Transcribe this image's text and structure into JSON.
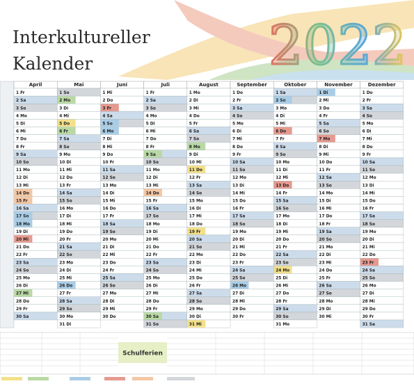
{
  "header": {
    "title_line1": "Interkultureller",
    "title_line2": "Kalender",
    "year": "2022"
  },
  "weekend_colors": {
    "Sa": "#cddceb",
    "So": "#d3d6da"
  },
  "months": [
    {
      "name": "April",
      "days": [
        "1 Fr",
        "2 Sa",
        "3 So",
        "4 Mo",
        "5 Di",
        "6 Mi",
        "7 Do",
        "8 Fr",
        "9 Sa",
        "10 So",
        "11 Mo",
        "12 Di",
        "13 Mi",
        "14 Do",
        "15 Fr",
        "16 Sa",
        "17 So",
        "18 Mo",
        "19 Di",
        "20 Mi",
        "21 Do",
        "22 Fr",
        "23 Sa",
        "24 So",
        "25 Mo",
        "26 Di",
        "27 Mi",
        "28 Do",
        "29 Fr",
        "30 Sa"
      ],
      "highlights": [
        {
          "day": 14,
          "color": "#f4c7a4"
        },
        {
          "day": 15,
          "color": "#f4c7a4"
        },
        {
          "day": 17,
          "color": "#a9cde6"
        },
        {
          "day": 18,
          "color": "#a9cde6"
        },
        {
          "day": 20,
          "color": "#e69a8f"
        },
        {
          "day": 27,
          "color": "#b9d9a4"
        }
      ]
    },
    {
      "name": "Mai",
      "days": [
        "1 So",
        "2 Mo",
        "3 Di",
        "4 Mi",
        "5 Do",
        "6 Fr",
        "7 Sa",
        "8 So",
        "9 Mo",
        "10 Di",
        "11 Mi",
        "12 Do",
        "13 Fr",
        "14 Sa",
        "15 So",
        "16 Mo",
        "17 Di",
        "18 Mi",
        "19 Do",
        "20 Fr",
        "21 Sa",
        "22 So",
        "23 Mo",
        "24 Di",
        "25 Mi",
        "26 Do",
        "27 Fr",
        "28 Sa",
        "29 So",
        "30 Mo",
        "31 Di"
      ],
      "highlights": [
        {
          "day": 2,
          "color": "#b9d9a4"
        },
        {
          "day": 5,
          "color": "#f3e08a"
        },
        {
          "day": 6,
          "color": "#b9d9a4"
        },
        {
          "day": 26,
          "color": "#a9cde6"
        }
      ]
    },
    {
      "name": "Juni",
      "days": [
        "1 Mi",
        "2 Do",
        "3 Fr",
        "4 Sa",
        "5 So",
        "6 Mo",
        "7 Di",
        "8 Mi",
        "9 Do",
        "10 Fr",
        "11 Sa",
        "12 So",
        "13 Mo",
        "14 Di",
        "15 Mi",
        "16 Do",
        "17 Fr",
        "18 Sa",
        "19 So",
        "20 Mo",
        "21 Di",
        "22 Mi",
        "23 Do",
        "24 Fr",
        "25 Sa",
        "26 So",
        "27 Mo",
        "28 Di",
        "29 Mi",
        "30 Do"
      ],
      "highlights": [
        {
          "day": 3,
          "color": "#e69a8f"
        },
        {
          "day": 5,
          "color": "#a9cde6"
        },
        {
          "day": 6,
          "color": "#a9cde6"
        }
      ]
    },
    {
      "name": "Juli",
      "days": [
        "1 Fr",
        "2 Sa",
        "3 So",
        "4 Mo",
        "5 Di",
        "6 Mi",
        "7 Do",
        "8 Fr",
        "9 Sa",
        "10 So",
        "11 Mo",
        "12 Di",
        "13 Mi",
        "14 Do",
        "15 Fr",
        "16 Sa",
        "17 So",
        "18 Mo",
        "19 Di",
        "20 Mi",
        "21 Do",
        "22 Fr",
        "23 Sa",
        "24 So",
        "25 Mo",
        "26 Di",
        "27 Mi",
        "28 Do",
        "29 Fr",
        "30 Sa",
        "31 So"
      ],
      "highlights": [
        {
          "day": 9,
          "color": "#b9d9a4"
        },
        {
          "day": 14,
          "color": "#f4c7a4"
        },
        {
          "day": 30,
          "color": "#b9d9a4"
        }
      ]
    },
    {
      "name": "August",
      "days": [
        "1 Mo",
        "2 Di",
        "3 Mi",
        "4 Do",
        "5 Fr",
        "6 Sa",
        "7 So",
        "8 Mo",
        "9 Di",
        "10 Mi",
        "11 Do",
        "12 Fr",
        "13 Sa",
        "14 So",
        "15 Mo",
        "16 Di",
        "17 Mi",
        "18 Do",
        "19 Fr",
        "20 Sa",
        "21 So",
        "22 Mo",
        "23 Di",
        "24 Mi",
        "25 Do",
        "26 Fr",
        "27 Sa",
        "28 So",
        "29 Mo",
        "30 Di",
        "31 Mi"
      ],
      "highlights": [
        {
          "day": 8,
          "color": "#b9d9a4"
        },
        {
          "day": 11,
          "color": "#f3e08a"
        },
        {
          "day": 19,
          "color": "#f3e08a"
        },
        {
          "day": 31,
          "color": "#f3e08a"
        }
      ]
    },
    {
      "name": "September",
      "days": [
        "1 Do",
        "2 Fr",
        "3 Sa",
        "4 So",
        "5 Mo",
        "6 Di",
        "7 Mi",
        "8 Do",
        "9 Fr",
        "10 Sa",
        "11 So",
        "12 Mo",
        "13 Di",
        "14 Mi",
        "15 Do",
        "16 Fr",
        "17 Sa",
        "18 So",
        "19 Mo",
        "20 Di",
        "21 Mi",
        "22 Do",
        "23 Fr",
        "24 Sa",
        "25 So",
        "26 Mo",
        "27 Di",
        "28 Mi",
        "29 Do",
        "30 Fr"
      ],
      "highlights": [
        {
          "day": 26,
          "color": "#a9cde6"
        }
      ]
    },
    {
      "name": "Oktober",
      "days": [
        "1 Sa",
        "2 So",
        "3 Mo",
        "4 Di",
        "5 Mi",
        "6 Do",
        "7 Fr",
        "8 Sa",
        "9 So",
        "10 Mo",
        "11 Di",
        "12 Mi",
        "13 Do",
        "14 Fr",
        "15 Sa",
        "16 So",
        "17 Mo",
        "18 Di",
        "19 Mi",
        "20 Do",
        "21 Fr",
        "22 Sa",
        "23 So",
        "24 Mo",
        "25 Di",
        "26 Mi",
        "27 Do",
        "28 Fr",
        "29 Sa",
        "30 So",
        "31 Mo"
      ],
      "highlights": [
        {
          "day": 2,
          "color": "#a9cde6"
        },
        {
          "day": 6,
          "color": "#e69a8f"
        },
        {
          "day": 13,
          "color": "#e69a8f"
        },
        {
          "day": 24,
          "color": "#f3e08a"
        }
      ]
    },
    {
      "name": "November",
      "days": [
        "1 Di",
        "2 Mi",
        "3 Do",
        "4 Fr",
        "5 Sa",
        "6 So",
        "7 Mo",
        "8 Di",
        "9 Mi",
        "10 Do",
        "11 Fr",
        "12 Sa",
        "13 So",
        "14 Mo",
        "15 Di",
        "16 Mi",
        "17 Do",
        "18 Fr",
        "19 Sa",
        "20 So",
        "21 Mo",
        "22 Di",
        "23 Mi",
        "24 Do",
        "25 Fr",
        "26 Sa",
        "27 So",
        "28 Mo",
        "29 Di",
        "30 Mi"
      ],
      "highlights": [
        {
          "day": 1,
          "color": "#a9cde6"
        },
        {
          "day": 7,
          "color": "#e69a8f"
        }
      ]
    },
    {
      "name": "Dezember",
      "days": [
        "1 Do",
        "2 Fr",
        "3 Sa",
        "4 So",
        "5 Mo",
        "6 Di",
        "7 Mi",
        "8 Do",
        "9 Fr",
        "10 Sa",
        "11 So",
        "12 Mo",
        "13 Di",
        "14 Mi",
        "15 Do",
        "16 Fr",
        "17 Sa",
        "18 So",
        "19 Mo",
        "20 Di",
        "21 Mi",
        "22 Do",
        "23 Fr",
        "24 Sa",
        "25 So",
        "26 Mo",
        "27 Di",
        "28 Mi",
        "29 Do",
        "30 Fr",
        "31 Sa"
      ],
      "highlights": [
        {
          "day": 23,
          "color": "#e69a8f"
        }
      ]
    }
  ],
  "footer": {
    "holidays_label": "Schulferien"
  }
}
